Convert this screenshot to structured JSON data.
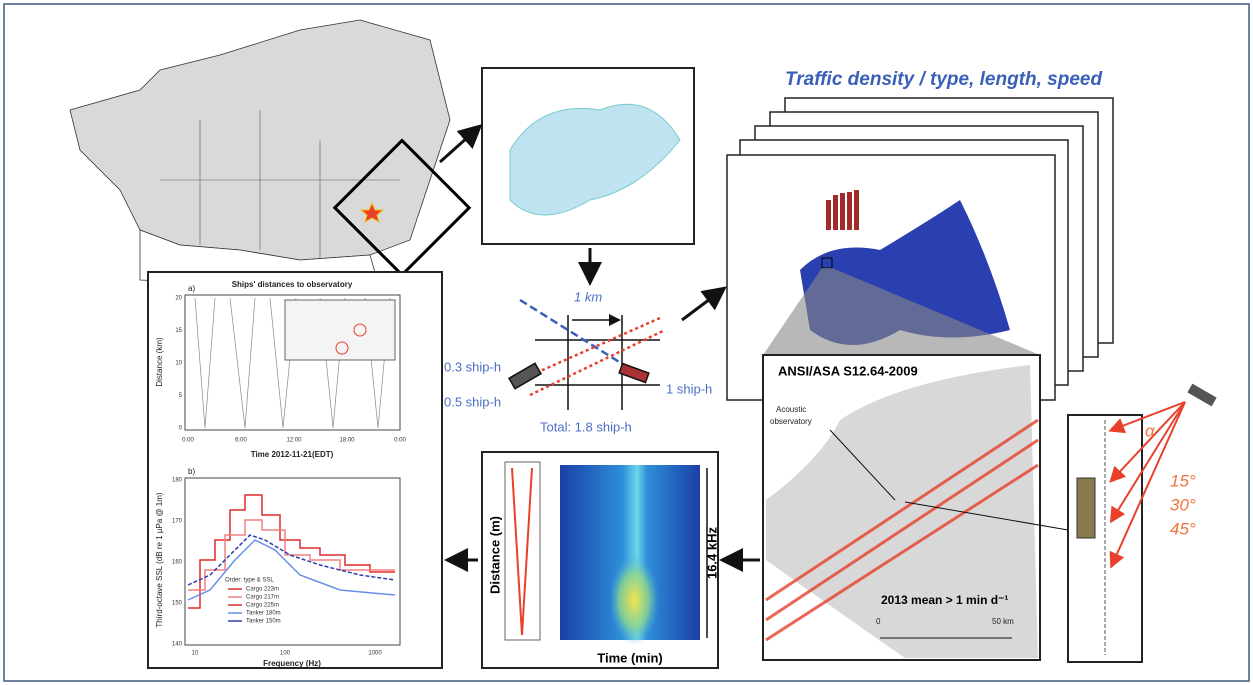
{
  "header": {
    "title": "Traffic density / type, length, speed"
  },
  "ship_hours": {
    "width": "1 km",
    "left_upper": "0.3 ship-h",
    "left_lower": "0.5 ship-h",
    "right": "1 ship-h",
    "total": "Total: 1.8 ship-h"
  },
  "map_panel": {
    "standard": "ANSI/ASA S12.64-2009",
    "observatory_line1": "Acoustic",
    "observatory_line2": "observatory",
    "caption": "2013 mean > 1 min d⁻¹",
    "scale_start": "0",
    "scale_end": "50 km"
  },
  "hydrophone": {
    "angle_symbol": "α",
    "angles": [
      "15°",
      "30°",
      "45°"
    ]
  },
  "spectrogram": {
    "y_label": "Distance (m)",
    "x_label": "Time (min)",
    "band": "16.4 kHz"
  },
  "distance_plot": {
    "panel": "a)",
    "title": "Ships' distances to observatory",
    "y_label": "Distance (km)",
    "x_label": "Time 2012-11-21(EDT)",
    "x_ticks": [
      "0:00",
      "6:00",
      "12:00",
      "18:00",
      "0:00"
    ],
    "y_ticks": [
      20,
      15,
      10,
      5,
      0
    ]
  },
  "spectrum_plot": {
    "panel": "b)",
    "y_label": "Third-octave SSL (dB re 1 µPa @ 1m)",
    "x_label": "Frequency (Hz)",
    "x_ticks": [
      10,
      100,
      1000
    ],
    "y_ticks": [
      180,
      170,
      160,
      150,
      140
    ],
    "legend_title": "Order: type & SSL",
    "legend": [
      "Cargo 223m",
      "Cargo 217m",
      "Cargo 225m",
      "Tanker 180m",
      "Tanker 150m"
    ]
  }
}
